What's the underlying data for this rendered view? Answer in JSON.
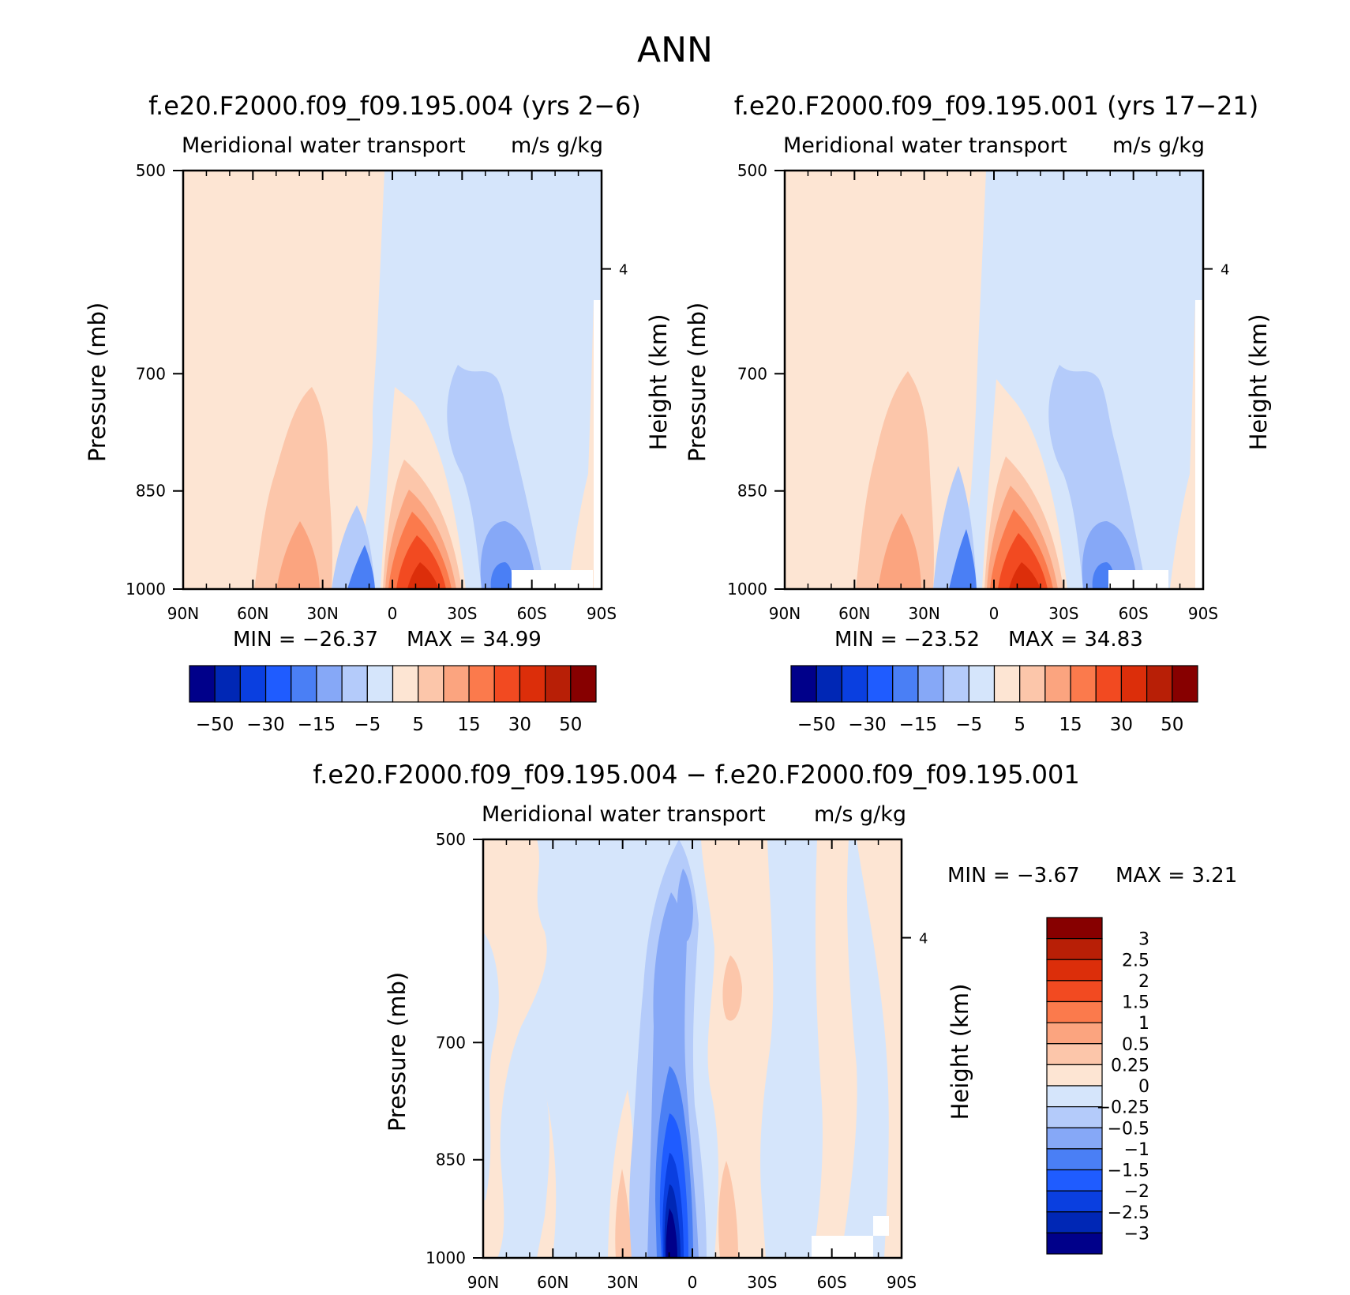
{
  "page_title": "ANN",
  "chart_data": [
    {
      "id": "case1",
      "type": "contour",
      "title": "f.e20.F2000.f09_f09.195.004 (yrs 2−6)",
      "left_label": "Meridional water transport",
      "right_label": "m/s g/kg",
      "ylabel": "Pressure (mb)",
      "ylabel_right": "Height (km)",
      "x_ticks": [
        "90N",
        "60N",
        "30N",
        "0",
        "30S",
        "60S",
        "90S"
      ],
      "x_values": [
        90,
        60,
        30,
        0,
        -30,
        -60,
        -90
      ],
      "xlim": [
        90,
        -90
      ],
      "y_ticks": [
        500,
        700,
        850,
        1000
      ],
      "ylim": [
        500,
        1000
      ],
      "height_tick": {
        "value": 4,
        "label": "4"
      },
      "min_text": "MIN = −26.37",
      "max_text": "MAX =   34.99",
      "min": -26.37,
      "max": 34.99,
      "colorbar_labels": [
        "−50",
        "−30",
        "−15",
        "−5",
        "5",
        "15",
        "30",
        "50"
      ],
      "levels": [
        -50,
        -40,
        -30,
        -20,
        -15,
        -10,
        -5,
        0,
        5,
        10,
        15,
        20,
        30,
        40,
        50
      ]
    },
    {
      "id": "case2",
      "type": "contour",
      "title": "f.e20.F2000.f09_f09.195.001 (yrs 17−21)",
      "left_label": "Meridional water transport",
      "right_label": "m/s g/kg",
      "ylabel": "Pressure (mb)",
      "ylabel_right": "Height (km)",
      "x_ticks": [
        "90N",
        "60N",
        "30N",
        "0",
        "30S",
        "60S",
        "90S"
      ],
      "x_values": [
        90,
        60,
        30,
        0,
        -30,
        -60,
        -90
      ],
      "xlim": [
        90,
        -90
      ],
      "y_ticks": [
        500,
        700,
        850,
        1000
      ],
      "ylim": [
        500,
        1000
      ],
      "height_tick": {
        "value": 4,
        "label": "4"
      },
      "min_text": "MIN = −23.52",
      "max_text": "MAX =   34.83",
      "min": -23.52,
      "max": 34.83,
      "colorbar_labels": [
        "−50",
        "−30",
        "−15",
        "−5",
        "5",
        "15",
        "30",
        "50"
      ],
      "levels": [
        -50,
        -40,
        -30,
        -20,
        -15,
        -10,
        -5,
        0,
        5,
        10,
        15,
        20,
        30,
        40,
        50
      ]
    },
    {
      "id": "diff",
      "type": "contour",
      "title": "f.e20.F2000.f09_f09.195.004 − f.e20.F2000.f09_f09.195.001",
      "left_label": "Meridional water transport",
      "right_label": "m/s g/kg",
      "ylabel": "Pressure (mb)",
      "ylabel_right": "Height (km)",
      "x_ticks": [
        "90N",
        "60N",
        "30N",
        "0",
        "30S",
        "60S",
        "90S"
      ],
      "x_values": [
        90,
        60,
        30,
        0,
        -30,
        -60,
        -90
      ],
      "xlim": [
        90,
        -90
      ],
      "y_ticks": [
        500,
        700,
        850,
        1000
      ],
      "ylim": [
        500,
        1000
      ],
      "height_tick": {
        "value": 4,
        "label": "4"
      },
      "min_text": "MIN =    −3.67",
      "max_text": "MAX =     3.21",
      "min": -3.67,
      "max": 3.21,
      "colorbar_labels": [
        "3",
        "2.5",
        "2",
        "1.5",
        "1",
        "0.5",
        "0.25",
        "0",
        "−0.25",
        "−0.5",
        "−1",
        "−1.5",
        "−2",
        "−2.5",
        "−3"
      ],
      "levels": [
        -3,
        -2.5,
        -2,
        -1.5,
        -1,
        -0.5,
        -0.25,
        0,
        0.25,
        0.5,
        1,
        1.5,
        2,
        2.5,
        3
      ]
    }
  ],
  "colors": {
    "palette": [
      "#00008a",
      "#0027b5",
      "#0a3fe0",
      "#1f5cff",
      "#4a7ff5",
      "#86a8f7",
      "#b4cbfa",
      "#d5e5fb",
      "#fde5d3",
      "#fcc6aa",
      "#fba47f",
      "#fb7a4c",
      "#f24a21",
      "#dc2e0a",
      "#b81f06",
      "#870000"
    ]
  }
}
